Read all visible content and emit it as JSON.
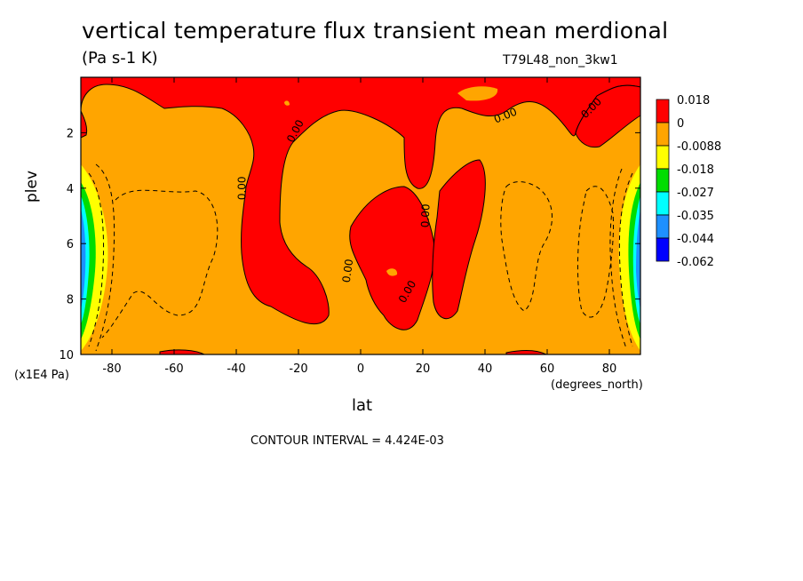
{
  "chart_data": {
    "type": "heatmap",
    "title": "vertical temperature flux transient mean merdional",
    "units": "(Pa s-1 K)",
    "run_label": "T79L48_non_3kw1",
    "xlabel": "lat",
    "x_units": "(degrees_north)",
    "ylabel": "plev",
    "y_units": "(x1E4 Pa)",
    "xlim": [
      -90,
      90
    ],
    "ylim": [
      0,
      10
    ],
    "y_inverted": true,
    "x_ticks": [
      "-80",
      "-60",
      "-40",
      "-20",
      "0",
      "20",
      "40",
      "60",
      "80"
    ],
    "y_ticks": [
      "2",
      "4",
      "6",
      "8",
      "10"
    ],
    "contour_interval": "CONTOUR INTERVAL = 4.424E-03",
    "contour_label": "0.00",
    "legend": {
      "placement": "right",
      "levels": [
        "0.018",
        "0",
        "-0.0088",
        "-0.018",
        "-0.027",
        "-0.035",
        "-0.044",
        "-0.062"
      ],
      "colors": [
        "#ff0000",
        "#ffa500",
        "#ffff00",
        "#00dd00",
        "#00ffff",
        "#1e90ff",
        "#0000ff"
      ]
    },
    "background_color": "#ffa500",
    "positive_color": "#ff0000"
  }
}
